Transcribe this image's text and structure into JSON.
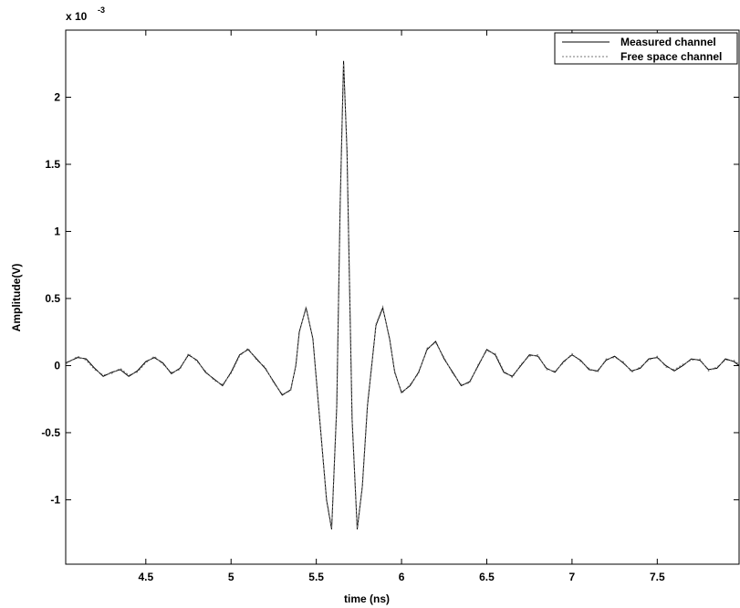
{
  "chart_data": {
    "type": "line",
    "x_label": "time (ns)",
    "y_label": "Amplitude(V)",
    "y_multiplier": {
      "base": "x 10",
      "exponent": "-3"
    },
    "x": [
      4.03,
      4.1,
      4.15,
      4.2,
      4.25,
      4.3,
      4.35,
      4.4,
      4.45,
      4.5,
      4.55,
      4.6,
      4.65,
      4.7,
      4.75,
      4.8,
      4.85,
      4.9,
      4.95,
      5.0,
      5.05,
      5.1,
      5.15,
      5.2,
      5.25,
      5.3,
      5.35,
      5.38,
      5.4,
      5.44,
      5.48,
      5.52,
      5.56,
      5.59,
      5.62,
      5.64,
      5.66,
      5.68,
      5.71,
      5.74,
      5.77,
      5.8,
      5.85,
      5.89,
      5.93,
      5.96,
      6.0,
      6.05,
      6.1,
      6.15,
      6.2,
      6.25,
      6.3,
      6.35,
      6.4,
      6.45,
      6.5,
      6.55,
      6.6,
      6.65,
      6.7,
      6.75,
      6.8,
      6.85,
      6.9,
      6.95,
      7.0,
      7.05,
      7.1,
      7.15,
      7.2,
      7.25,
      7.3,
      7.35,
      7.4,
      7.45,
      7.5,
      7.55,
      7.6,
      7.65,
      7.7,
      7.75,
      7.8,
      7.85,
      7.9,
      7.95,
      7.98
    ],
    "series": [
      {
        "name": "Measured channel",
        "color": "#000000",
        "dash": "none",
        "values": [
          0.02,
          0.06,
          0.05,
          -0.02,
          -0.08,
          -0.05,
          -0.03,
          -0.08,
          -0.04,
          0.03,
          0.06,
          0.02,
          -0.06,
          -0.02,
          0.08,
          0.04,
          -0.05,
          -0.1,
          -0.15,
          -0.05,
          0.08,
          0.12,
          0.05,
          -0.02,
          -0.12,
          -0.22,
          -0.18,
          0.0,
          0.25,
          0.43,
          0.2,
          -0.4,
          -1.0,
          -1.22,
          -0.3,
          1.2,
          2.27,
          1.6,
          -0.4,
          -1.22,
          -0.9,
          -0.3,
          0.3,
          0.43,
          0.2,
          -0.05,
          -0.2,
          -0.15,
          -0.05,
          0.12,
          0.18,
          0.05,
          -0.05,
          -0.15,
          -0.12,
          0.0,
          0.12,
          0.08,
          -0.05,
          -0.08,
          0.0,
          0.08,
          0.07,
          -0.02,
          -0.05,
          0.03,
          0.08,
          0.04,
          -0.03,
          -0.04,
          0.04,
          0.07,
          0.02,
          -0.04,
          -0.02,
          0.05,
          0.06,
          0.0,
          -0.04,
          0.0,
          0.05,
          0.04,
          -0.03,
          -0.02,
          0.05,
          0.03,
          0.0
        ]
      },
      {
        "name": "Free space channel",
        "color": "#777777",
        "dash": "2 2",
        "values": [
          0.01,
          0.07,
          0.04,
          -0.03,
          -0.07,
          -0.06,
          -0.02,
          -0.07,
          -0.05,
          0.02,
          0.07,
          0.01,
          -0.05,
          -0.03,
          0.09,
          0.03,
          -0.04,
          -0.11,
          -0.14,
          -0.06,
          0.07,
          0.13,
          0.04,
          -0.01,
          -0.13,
          -0.21,
          -0.19,
          0.01,
          0.24,
          0.44,
          0.19,
          -0.41,
          -0.99,
          -1.21,
          -0.31,
          1.19,
          2.25,
          1.61,
          -0.41,
          -1.21,
          -0.91,
          -0.29,
          0.31,
          0.44,
          0.19,
          -0.04,
          -0.21,
          -0.14,
          -0.06,
          0.13,
          0.17,
          0.06,
          -0.06,
          -0.14,
          -0.13,
          0.01,
          0.11,
          0.09,
          -0.04,
          -0.09,
          0.01,
          0.07,
          0.08,
          -0.03,
          -0.04,
          0.02,
          0.09,
          0.03,
          -0.02,
          -0.05,
          0.05,
          0.06,
          0.03,
          -0.05,
          -0.01,
          0.04,
          0.07,
          -0.01,
          -0.03,
          0.01,
          0.04,
          0.05,
          -0.04,
          -0.01,
          0.04,
          0.04,
          0.01
        ]
      }
    ],
    "xlim": [
      4.03,
      7.98
    ],
    "ylim": [
      -1.48,
      2.5
    ],
    "xticks": [
      4.5,
      5,
      5.5,
      6,
      6.5,
      7,
      7.5
    ],
    "yticks": [
      -1,
      -0.5,
      0,
      0.5,
      1,
      1.5,
      2
    ],
    "legend": "top-right",
    "grid": false
  }
}
